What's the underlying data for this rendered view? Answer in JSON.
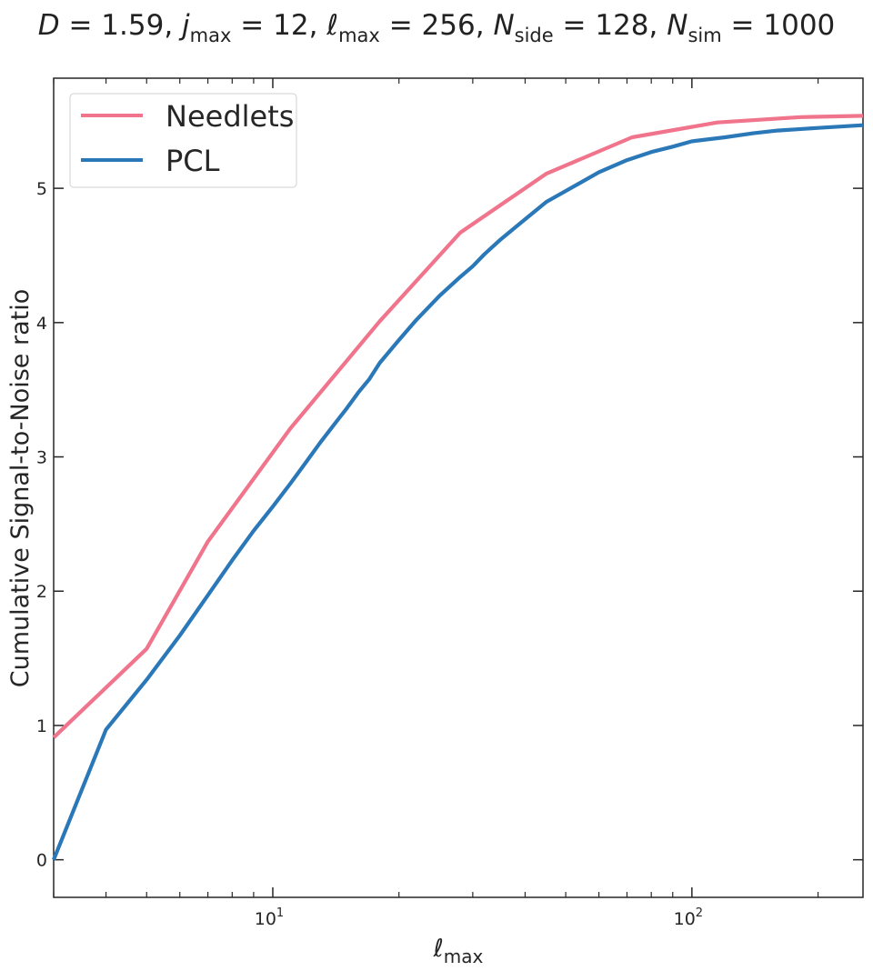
{
  "chart_data": {
    "type": "line",
    "title": {
      "D": "1.59",
      "j_max": "12",
      "ell_max": "256",
      "N_side": "128",
      "N_sim": "1000"
    },
    "xlabel": {
      "base": "ℓ",
      "sub": "max"
    },
    "ylabel": "Cumulative Signal-to-Noise ratio",
    "x_scale": "log",
    "xlim": [
      3,
      256
    ],
    "ylim": [
      -0.28,
      5.82
    ],
    "x_ticks": [
      {
        "value": 10,
        "base": "10",
        "exp": "1"
      },
      {
        "value": 100,
        "base": "10",
        "exp": "2"
      }
    ],
    "y_ticks": [
      0,
      1,
      2,
      3,
      4,
      5
    ],
    "grid": false,
    "legend_position": "top-left",
    "series": [
      {
        "name": "Needlets",
        "color": "#f0748b",
        "x": [
          3,
          5,
          7,
          11,
          18,
          28,
          45,
          72,
          115,
          182,
          256
        ],
        "y": [
          0.91,
          1.57,
          2.37,
          3.21,
          4.01,
          4.67,
          5.11,
          5.38,
          5.49,
          5.53,
          5.54
        ]
      },
      {
        "name": "PCL",
        "color": "#2a78b8",
        "x": [
          3,
          4,
          5,
          6,
          7,
          8,
          9,
          10,
          11,
          12,
          13,
          14,
          15,
          16,
          17,
          18,
          20,
          22,
          25,
          28,
          30,
          32,
          35,
          40,
          45,
          50,
          60,
          70,
          80,
          90,
          100,
          120,
          140,
          160,
          200,
          256
        ],
        "y": [
          0.0,
          0.97,
          1.34,
          1.67,
          1.97,
          2.23,
          2.45,
          2.63,
          2.8,
          2.96,
          3.11,
          3.24,
          3.36,
          3.48,
          3.58,
          3.7,
          3.87,
          4.02,
          4.2,
          4.34,
          4.42,
          4.51,
          4.62,
          4.77,
          4.9,
          4.98,
          5.12,
          5.21,
          5.27,
          5.31,
          5.35,
          5.38,
          5.41,
          5.43,
          5.45,
          5.47
        ]
      }
    ]
  }
}
